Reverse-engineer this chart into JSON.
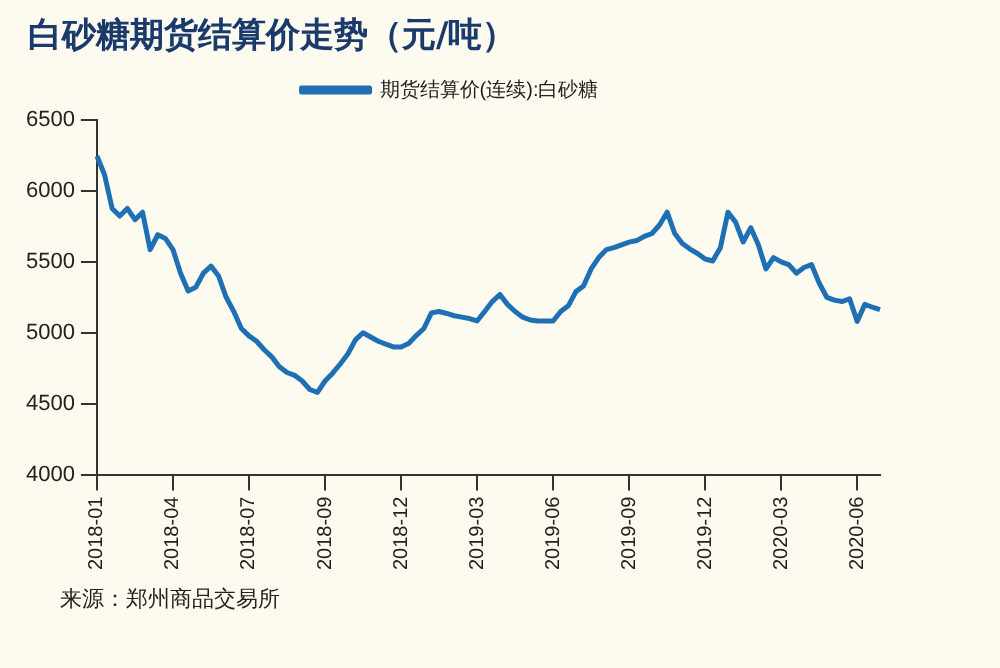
{
  "chart_data": {
    "type": "line",
    "title": "白砂糖期货结算价走势（元/吨）",
    "categories": [
      "2018-01",
      null,
      null,
      null,
      null,
      null,
      null,
      null,
      null,
      null,
      "2018-04",
      null,
      null,
      null,
      null,
      null,
      null,
      null,
      null,
      null,
      "2018-07",
      null,
      null,
      null,
      null,
      null,
      null,
      null,
      null,
      null,
      "2018-09",
      null,
      null,
      null,
      null,
      null,
      null,
      null,
      null,
      null,
      "2018-12",
      null,
      null,
      null,
      null,
      null,
      null,
      null,
      null,
      null,
      "2019-03",
      null,
      null,
      null,
      null,
      null,
      null,
      null,
      null,
      null,
      "2019-06",
      null,
      null,
      null,
      null,
      null,
      null,
      null,
      null,
      null,
      "2019-09",
      null,
      null,
      null,
      null,
      null,
      null,
      null,
      null,
      null,
      "2019-12",
      null,
      null,
      null,
      null,
      null,
      null,
      null,
      null,
      null,
      "2020-03",
      null,
      null,
      null,
      null,
      null,
      null,
      null,
      null,
      null,
      "2020-06",
      null,
      null,
      null
    ],
    "series": [
      {
        "name": "期货结算价(连续):白砂糖",
        "color": "#1f6fb4",
        "values": [
          6246,
          6114,
          5876,
          5823,
          5876,
          5797,
          5850,
          5586,
          5691,
          5665,
          5586,
          5420,
          5295,
          5321,
          5420,
          5470,
          5400,
          5250,
          5150,
          5030,
          4978,
          4940,
          4880,
          4830,
          4760,
          4720,
          4700,
          4660,
          4600,
          4580,
          4660,
          4715,
          4780,
          4850,
          4950,
          5000,
          4970,
          4940,
          4920,
          4900,
          4900,
          4925,
          4980,
          5030,
          5140,
          5150,
          5136,
          5120,
          5110,
          5100,
          5083,
          5150,
          5220,
          5270,
          5200,
          5150,
          5110,
          5090,
          5083,
          5083,
          5083,
          5150,
          5190,
          5290,
          5330,
          5450,
          5530,
          5586,
          5600,
          5620,
          5639,
          5650,
          5680,
          5700,
          5760,
          5850,
          5700,
          5630,
          5590,
          5559,
          5520,
          5506,
          5600,
          5850,
          5780,
          5640,
          5740,
          5620,
          5450,
          5530,
          5500,
          5480,
          5420,
          5460,
          5480,
          5350,
          5250,
          5230,
          5220,
          5240,
          5080,
          5200,
          5180,
          5163
        ]
      }
    ],
    "ylim": [
      4000,
      6500
    ],
    "yticks": [
      4000,
      4500,
      5000,
      5500,
      6000,
      6500
    ],
    "grid": false,
    "legend": "top",
    "marker": "none",
    "line_style": "solid",
    "annotations": [
      "来源：郑州商品交易所"
    ]
  }
}
